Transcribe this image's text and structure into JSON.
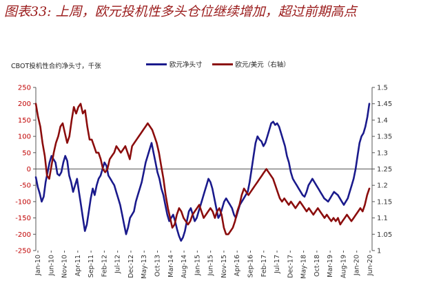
{
  "title": "图表33: 上周，欧元投机性多头仓位继续增加，超过前期高点",
  "chart_data": {
    "type": "line",
    "subtitle": "CBOT投机性合约净头寸，千张",
    "left_axis": {
      "ylim": [
        -250,
        250
      ],
      "ticks": [
        250,
        200,
        150,
        100,
        50,
        0,
        -50,
        -100,
        -150,
        -200,
        -250
      ]
    },
    "right_axis": {
      "ylim": [
        1.0,
        1.5
      ],
      "ticks": [
        1.5,
        1.45,
        1.4,
        1.35,
        1.3,
        1.25,
        1.2,
        1.15,
        1.1,
        1.05,
        1
      ]
    },
    "x_ticks": [
      "Jan-10",
      "Jun-10",
      "Nov-10",
      "Apr-11",
      "Sep-11",
      "Feb-12",
      "Jul-12",
      "Dec-12",
      "May-13",
      "Oct-13",
      "Mar-14",
      "Aug-14",
      "Jan-15",
      "Jun-15",
      "Nov-15",
      "Apr-16",
      "Sep-16",
      "Feb-17",
      "Jul-17",
      "Dec-17",
      "May-18",
      "Oct-18",
      "Mar-19",
      "Aug-19",
      "Jan-20",
      "Jun-20"
    ],
    "series": [
      {
        "name": "欧元净头寸",
        "axis": "left",
        "color": "#1a1a8c",
        "values": [
          -25,
          -55,
          -75,
          -100,
          -85,
          -40,
          -10,
          20,
          40,
          30,
          20,
          -15,
          -20,
          -10,
          20,
          40,
          25,
          -20,
          -40,
          -70,
          -50,
          -30,
          -70,
          -110,
          -150,
          -190,
          -170,
          -130,
          -90,
          -60,
          -80,
          -50,
          -30,
          -20,
          0,
          20,
          10,
          -20,
          -30,
          -40,
          -50,
          -70,
          -90,
          -110,
          -140,
          -170,
          -200,
          -180,
          -150,
          -140,
          -130,
          -100,
          -80,
          -60,
          -40,
          -10,
          20,
          40,
          60,
          80,
          50,
          20,
          -10,
          -30,
          -60,
          -80,
          -110,
          -140,
          -160,
          -150,
          -140,
          -160,
          -185,
          -205,
          -220,
          -210,
          -190,
          -160,
          -130,
          -120,
          -140,
          -160,
          -150,
          -130,
          -110,
          -90,
          -70,
          -50,
          -30,
          -40,
          -60,
          -90,
          -120,
          -150,
          -140,
          -120,
          -100,
          -90,
          -100,
          -110,
          -120,
          -140,
          -150,
          -130,
          -110,
          -100,
          -90,
          -80,
          -70,
          -40,
          0,
          40,
          80,
          100,
          90,
          85,
          70,
          80,
          100,
          120,
          140,
          145,
          135,
          140,
          130,
          110,
          90,
          70,
          40,
          20,
          -10,
          -30,
          -40,
          -50,
          -60,
          -70,
          -80,
          -85,
          -70,
          -50,
          -40,
          -30,
          -40,
          -50,
          -60,
          -70,
          -80,
          -90,
          -95,
          -100,
          -90,
          -80,
          -70,
          -75,
          -80,
          -90,
          -100,
          -110,
          -100,
          -90,
          -70,
          -50,
          -30,
          0,
          40,
          80,
          100,
          110,
          130,
          160,
          200
        ]
      },
      {
        "name": "欧元/美元（右轴）",
        "axis": "right",
        "color": "#8b0d0d",
        "values": [
          1.45,
          1.41,
          1.38,
          1.33,
          1.29,
          1.23,
          1.22,
          1.26,
          1.3,
          1.33,
          1.35,
          1.38,
          1.39,
          1.36,
          1.33,
          1.35,
          1.4,
          1.44,
          1.42,
          1.44,
          1.45,
          1.42,
          1.43,
          1.38,
          1.34,
          1.34,
          1.32,
          1.3,
          1.3,
          1.28,
          1.25,
          1.24,
          1.25,
          1.28,
          1.29,
          1.3,
          1.32,
          1.31,
          1.3,
          1.31,
          1.32,
          1.3,
          1.28,
          1.32,
          1.33,
          1.34,
          1.35,
          1.36,
          1.37,
          1.38,
          1.39,
          1.38,
          1.37,
          1.35,
          1.33,
          1.3,
          1.26,
          1.22,
          1.17,
          1.13,
          1.1,
          1.07,
          1.08,
          1.11,
          1.13,
          1.12,
          1.1,
          1.09,
          1.08,
          1.09,
          1.11,
          1.12,
          1.13,
          1.14,
          1.12,
          1.1,
          1.11,
          1.12,
          1.13,
          1.12,
          1.1,
          1.12,
          1.13,
          1.11,
          1.07,
          1.05,
          1.05,
          1.06,
          1.07,
          1.09,
          1.12,
          1.14,
          1.17,
          1.19,
          1.18,
          1.17,
          1.18,
          1.19,
          1.2,
          1.21,
          1.22,
          1.23,
          1.24,
          1.25,
          1.24,
          1.23,
          1.22,
          1.2,
          1.18,
          1.16,
          1.15,
          1.16,
          1.15,
          1.14,
          1.15,
          1.14,
          1.13,
          1.14,
          1.15,
          1.14,
          1.13,
          1.12,
          1.13,
          1.12,
          1.11,
          1.12,
          1.13,
          1.12,
          1.11,
          1.1,
          1.11,
          1.1,
          1.09,
          1.1,
          1.09,
          1.1,
          1.08,
          1.09,
          1.1,
          1.11,
          1.1,
          1.09,
          1.1,
          1.11,
          1.12,
          1.13,
          1.12,
          1.14,
          1.17,
          1.19
        ]
      }
    ]
  }
}
